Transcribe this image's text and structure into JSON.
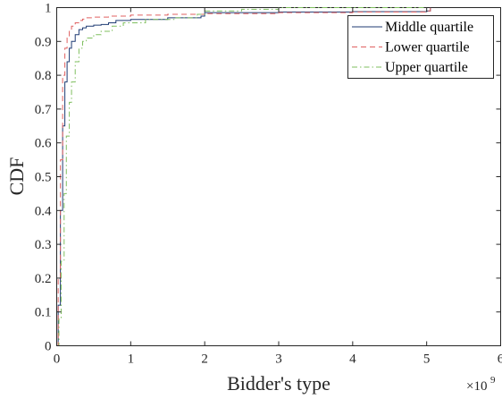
{
  "chart_data": {
    "type": "line",
    "xlabel": "Bidder's type",
    "ylabel": "CDF",
    "x_exponent_label": "×10",
    "x_exponent_power": "9",
    "xlim": [
      0,
      6
    ],
    "ylim": [
      0,
      1
    ],
    "x_ticks": [
      "0",
      "1",
      "2",
      "3",
      "4",
      "5",
      "6"
    ],
    "y_ticks": [
      "0",
      "0.1",
      "0.2",
      "0.3",
      "0.4",
      "0.5",
      "0.6",
      "0.7",
      "0.8",
      "0.9",
      "1"
    ],
    "grid": false,
    "legend_position": "top-right",
    "series": [
      {
        "name": "Middle quartile",
        "color": "#1f3b73",
        "dash": "solid",
        "x": [
          0,
          0.02,
          0.05,
          0.08,
          0.11,
          0.14,
          0.17,
          0.2,
          0.25,
          0.3,
          0.35,
          0.4,
          0.5,
          0.6,
          0.7,
          0.8,
          1.0,
          1.5,
          1.95,
          2.0,
          3.0,
          4.0,
          5.0,
          5.05
        ],
        "y": [
          0,
          0.12,
          0.4,
          0.65,
          0.78,
          0.84,
          0.88,
          0.9,
          0.92,
          0.935,
          0.94,
          0.945,
          0.948,
          0.95,
          0.955,
          0.962,
          0.965,
          0.97,
          0.975,
          0.985,
          0.987,
          0.988,
          0.99,
          1.0
        ]
      },
      {
        "name": "Lower quartile",
        "color": "#e06060",
        "dash": "dashed",
        "x": [
          0,
          0.02,
          0.05,
          0.08,
          0.11,
          0.14,
          0.17,
          0.2,
          0.25,
          0.3,
          0.35,
          0.4,
          0.5,
          0.7,
          1.0,
          1.5,
          2.0,
          3.0,
          4.0,
          5.0,
          5.05
        ],
        "y": [
          0,
          0.2,
          0.55,
          0.8,
          0.88,
          0.91,
          0.93,
          0.945,
          0.955,
          0.962,
          0.966,
          0.97,
          0.972,
          0.975,
          0.978,
          0.98,
          0.982,
          0.985,
          0.987,
          0.99,
          1.0
        ]
      },
      {
        "name": "Upper quartile",
        "color": "#7fbf5f",
        "dash": "dashdot",
        "x": [
          0,
          0.03,
          0.06,
          0.1,
          0.13,
          0.17,
          0.2,
          0.25,
          0.3,
          0.35,
          0.4,
          0.5,
          0.6,
          0.75,
          0.9,
          1.2,
          1.6,
          1.9,
          2.0,
          2.5,
          3.0,
          4.0,
          5.0
        ],
        "y": [
          0,
          0.08,
          0.25,
          0.45,
          0.62,
          0.72,
          0.78,
          0.84,
          0.88,
          0.9,
          0.91,
          0.92,
          0.93,
          0.945,
          0.955,
          0.965,
          0.97,
          0.98,
          0.99,
          0.995,
          1.0,
          1.0,
          1.0
        ]
      }
    ]
  }
}
